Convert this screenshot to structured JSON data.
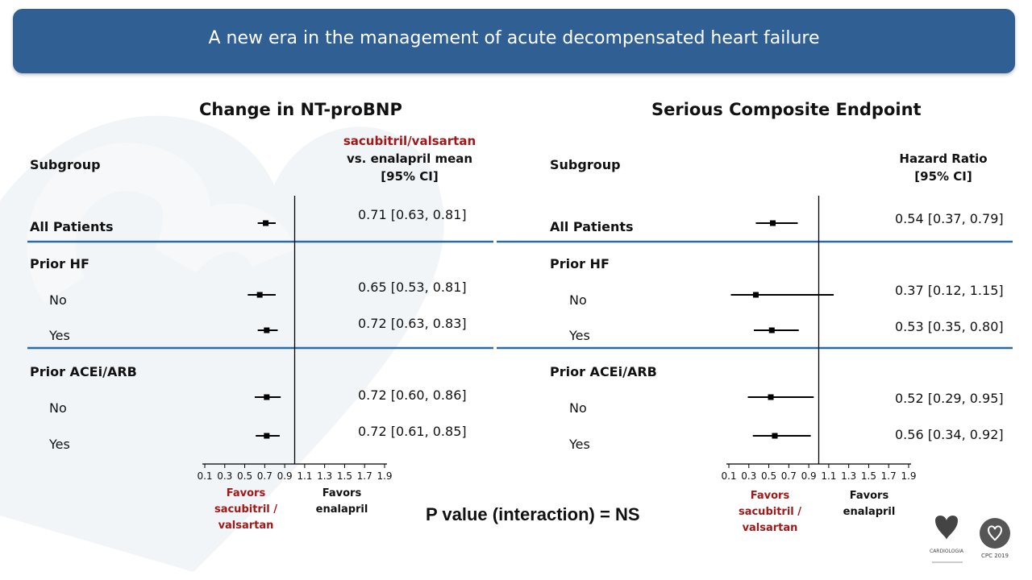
{
  "slide_title": "A new era in the management of acute decompensated heart failure",
  "p_value_text": "P value (interaction) = NS",
  "colors": {
    "header": "#2f5f93",
    "accent_red": "#a01818",
    "divider": "#2a6aa8"
  },
  "logos": {
    "left_caption": "CARDIOLOGIA",
    "right_caption": "CPC 2019"
  },
  "chart_data": [
    {
      "type": "forest",
      "title": "Change in NT-proBNP",
      "subgroup_header": "Subgroup",
      "estimate_header": [
        "sacubitril/valsartan",
        "vs. enalapril mean",
        "[95% CI]"
      ],
      "xlim": [
        0.1,
        1.9
      ],
      "x_ticks": [
        "0.1",
        "0.3",
        "0.5",
        "0.7",
        "0.9",
        "1.1",
        "1.3",
        "1.5",
        "1.7",
        "1.9"
      ],
      "ref_line": 1.0,
      "favors_left": [
        "Favors",
        "sacubitril /",
        "valsartan"
      ],
      "favors_right": [
        "Favors",
        "enalapril"
      ],
      "rows": [
        {
          "label": "All Patients",
          "group": true,
          "est": 0.71,
          "lo": 0.63,
          "hi": 0.81,
          "ci_text": "0.71 [0.63, 0.81]"
        },
        {
          "label": "Prior HF",
          "group": true,
          "header_only": true
        },
        {
          "label": "No",
          "group": false,
          "est": 0.65,
          "lo": 0.53,
          "hi": 0.81,
          "ci_text": "0.65 [0.53, 0.81]"
        },
        {
          "label": "Yes",
          "group": false,
          "est": 0.72,
          "lo": 0.63,
          "hi": 0.83,
          "ci_text": "0.72 [0.63, 0.83]"
        },
        {
          "label": "Prior ACEi/ARB",
          "group": true,
          "header_only": true
        },
        {
          "label": "No",
          "group": false,
          "est": 0.72,
          "lo": 0.6,
          "hi": 0.86,
          "ci_text": "0.72 [0.60, 0.86]"
        },
        {
          "label": "Yes",
          "group": false,
          "est": 0.72,
          "lo": 0.61,
          "hi": 0.85,
          "ci_text": "0.72 [0.61, 0.85]"
        }
      ]
    },
    {
      "type": "forest",
      "title": "Serious Composite Endpoint",
      "subgroup_header": "Subgroup",
      "estimate_header": [
        "Hazard Ratio",
        "[95% CI]"
      ],
      "xlim": [
        0.1,
        1.9
      ],
      "x_ticks": [
        "0.1",
        "0.3",
        "0.5",
        "0.7",
        "0.9",
        "1.1",
        "1.3",
        "1.5",
        "1.7",
        "1.9"
      ],
      "ref_line": 1.0,
      "favors_left": [
        "Favors",
        "sacubitril /",
        "valsartan"
      ],
      "favors_right": [
        "Favors",
        "enalapril"
      ],
      "rows": [
        {
          "label": "All Patients",
          "group": true,
          "est": 0.54,
          "lo": 0.37,
          "hi": 0.79,
          "ci_text": "0.54 [0.37, 0.79]"
        },
        {
          "label": "Prior HF",
          "group": true,
          "header_only": true
        },
        {
          "label": "No",
          "group": false,
          "est": 0.37,
          "lo": 0.12,
          "hi": 1.15,
          "ci_text": "0.37 [0.12, 1.15]"
        },
        {
          "label": "Yes",
          "group": false,
          "est": 0.53,
          "lo": 0.35,
          "hi": 0.8,
          "ci_text": "0.53 [0.35, 0.80]"
        },
        {
          "label": "Prior ACEi/ARB",
          "group": true,
          "header_only": true
        },
        {
          "label": "No",
          "group": false,
          "est": 0.52,
          "lo": 0.29,
          "hi": 0.95,
          "ci_text": "0.52 [0.29, 0.95]"
        },
        {
          "label": "Yes",
          "group": false,
          "est": 0.56,
          "lo": 0.34,
          "hi": 0.92,
          "ci_text": "0.56 [0.34, 0.92]"
        }
      ]
    }
  ]
}
